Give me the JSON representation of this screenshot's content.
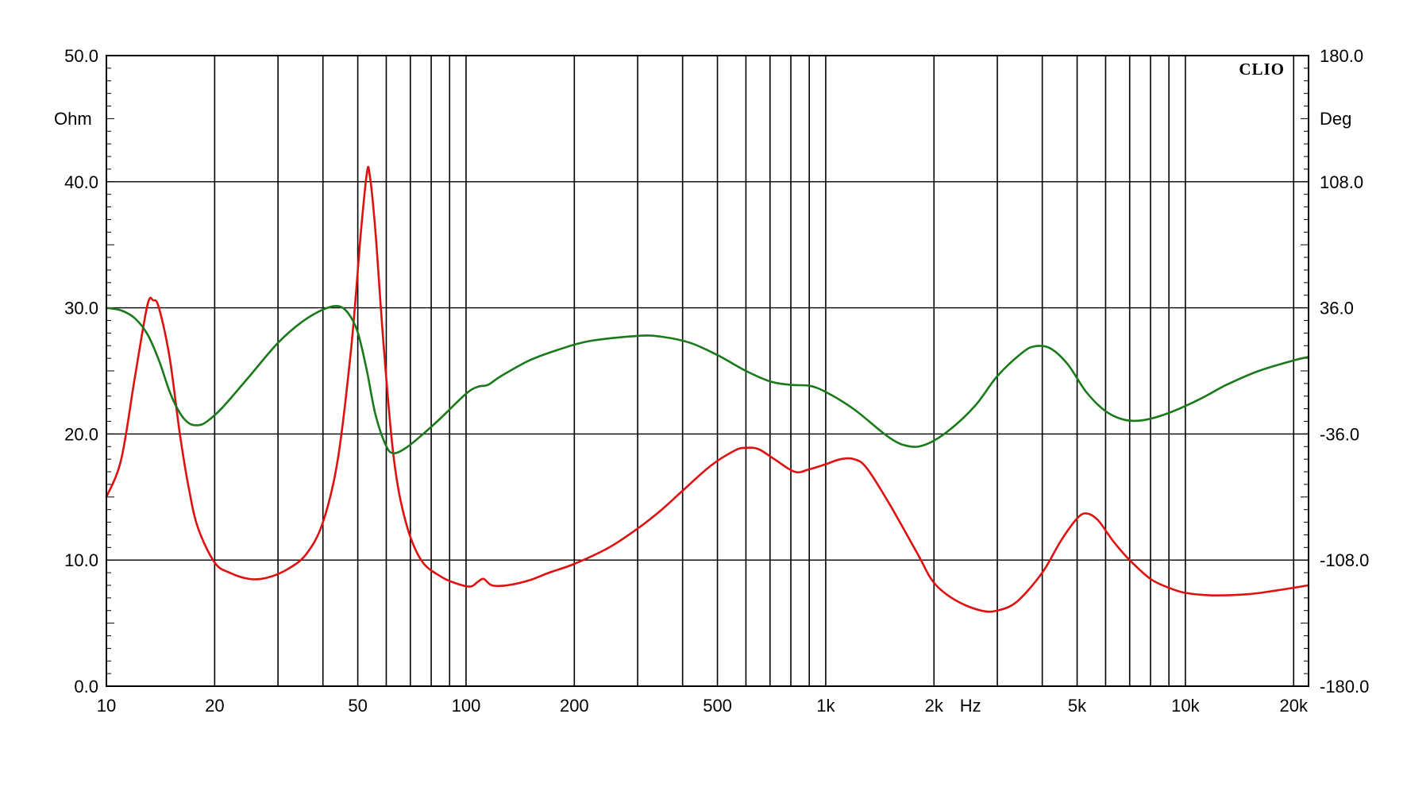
{
  "chart_data": {
    "type": "line",
    "title": "",
    "brand": "CLIO",
    "xlabel": "Hz",
    "x_scale": "log",
    "xlim": [
      10,
      22000
    ],
    "x_ticks": [
      {
        "value": 10,
        "label": "10"
      },
      {
        "value": 20,
        "label": "20"
      },
      {
        "value": 50,
        "label": "50"
      },
      {
        "value": 100,
        "label": "100"
      },
      {
        "value": 200,
        "label": "200"
      },
      {
        "value": 500,
        "label": "500"
      },
      {
        "value": 1000,
        "label": "1k"
      },
      {
        "value": 2000,
        "label": "2k"
      },
      {
        "value": 5000,
        "label": "5k"
      },
      {
        "value": 10000,
        "label": "10k"
      },
      {
        "value": 20000,
        "label": "20k"
      }
    ],
    "y_left": {
      "label": "Ohm",
      "ylim": [
        0,
        50
      ],
      "ticks": [
        "0.0",
        "10.0",
        "20.0",
        "30.0",
        "40.0",
        "50.0"
      ],
      "tick_values": [
        0,
        10,
        20,
        30,
        40,
        50
      ]
    },
    "y_right": {
      "label": "Deg",
      "ylim": [
        -180,
        180
      ],
      "ticks": [
        "-180.0",
        "-108.0",
        "-36.0",
        "36.0",
        "108.0",
        "180.0"
      ],
      "tick_values": [
        -180,
        -108,
        -36,
        36,
        108,
        180
      ]
    },
    "grid": true,
    "series": [
      {
        "id": "impedance",
        "axis": "left",
        "color": "#e01010",
        "points": [
          [
            10,
            15.0
          ],
          [
            11,
            18.0
          ],
          [
            12,
            24.5
          ],
          [
            13,
            30.2
          ],
          [
            13.5,
            30.6
          ],
          [
            14,
            30.0
          ],
          [
            15,
            26.0
          ],
          [
            16,
            20.0
          ],
          [
            17,
            15.5
          ],
          [
            18,
            12.5
          ],
          [
            20,
            9.8
          ],
          [
            22,
            9.0
          ],
          [
            25,
            8.5
          ],
          [
            28,
            8.6
          ],
          [
            32,
            9.3
          ],
          [
            36,
            10.5
          ],
          [
            40,
            13.0
          ],
          [
            44,
            18.0
          ],
          [
            48,
            27.0
          ],
          [
            51,
            36.0
          ],
          [
            53,
            40.7
          ],
          [
            54,
            40.5
          ],
          [
            56,
            36.0
          ],
          [
            59,
            27.0
          ],
          [
            63,
            18.0
          ],
          [
            68,
            13.0
          ],
          [
            75,
            10.0
          ],
          [
            85,
            8.7
          ],
          [
            95,
            8.1
          ],
          [
            103,
            7.9
          ],
          [
            108,
            8.3
          ],
          [
            112,
            8.5
          ],
          [
            118,
            8.0
          ],
          [
            130,
            8.0
          ],
          [
            150,
            8.4
          ],
          [
            170,
            9.0
          ],
          [
            200,
            9.7
          ],
          [
            250,
            11.0
          ],
          [
            300,
            12.5
          ],
          [
            350,
            14.0
          ],
          [
            400,
            15.5
          ],
          [
            480,
            17.5
          ],
          [
            560,
            18.7
          ],
          [
            600,
            18.9
          ],
          [
            650,
            18.8
          ],
          [
            720,
            18.0
          ],
          [
            820,
            17.0
          ],
          [
            900,
            17.2
          ],
          [
            1000,
            17.6
          ],
          [
            1100,
            18.0
          ],
          [
            1200,
            18.0
          ],
          [
            1300,
            17.3
          ],
          [
            1500,
            14.5
          ],
          [
            1800,
            10.5
          ],
          [
            2000,
            8.2
          ],
          [
            2300,
            6.8
          ],
          [
            2700,
            6.0
          ],
          [
            3000,
            6.0
          ],
          [
            3400,
            6.7
          ],
          [
            4000,
            9.0
          ],
          [
            4500,
            11.5
          ],
          [
            5000,
            13.3
          ],
          [
            5300,
            13.7
          ],
          [
            5700,
            13.2
          ],
          [
            6300,
            11.5
          ],
          [
            7000,
            10.0
          ],
          [
            8000,
            8.5
          ],
          [
            9000,
            7.8
          ],
          [
            10000,
            7.4
          ],
          [
            12000,
            7.2
          ],
          [
            15000,
            7.3
          ],
          [
            18000,
            7.6
          ],
          [
            22000,
            8.0
          ]
        ]
      },
      {
        "id": "phase",
        "axis": "right",
        "color": "#1a7a1a",
        "points": [
          [
            10,
            36.0
          ],
          [
            11,
            34.5
          ],
          [
            12,
            30.0
          ],
          [
            13,
            21.0
          ],
          [
            14,
            6.0
          ],
          [
            15,
            -12.0
          ],
          [
            16,
            -24.0
          ],
          [
            17,
            -30.0
          ],
          [
            18,
            -31.0
          ],
          [
            19,
            -29.0
          ],
          [
            21,
            -21.0
          ],
          [
            25,
            -3.0
          ],
          [
            30,
            16.0
          ],
          [
            35,
            28.0
          ],
          [
            40,
            35.0
          ],
          [
            44,
            37.0
          ],
          [
            47,
            33.0
          ],
          [
            50,
            22.0
          ],
          [
            53,
            0.0
          ],
          [
            56,
            -25.0
          ],
          [
            60,
            -43.0
          ],
          [
            63,
            -47.0
          ],
          [
            68,
            -44.0
          ],
          [
            75,
            -37.0
          ],
          [
            85,
            -27.0
          ],
          [
            100,
            -13.0
          ],
          [
            108,
            -9.0
          ],
          [
            115,
            -8.0
          ],
          [
            125,
            -3.0
          ],
          [
            150,
            6.0
          ],
          [
            180,
            12.0
          ],
          [
            220,
            17.0
          ],
          [
            300,
            20.0
          ],
          [
            350,
            19.5
          ],
          [
            420,
            16.0
          ],
          [
            500,
            9.0
          ],
          [
            600,
            0.0
          ],
          [
            700,
            -6.0
          ],
          [
            800,
            -8.0
          ],
          [
            900,
            -8.5
          ],
          [
            1000,
            -12.0
          ],
          [
            1200,
            -22.0
          ],
          [
            1500,
            -38.0
          ],
          [
            1700,
            -43.0
          ],
          [
            1900,
            -42.0
          ],
          [
            2200,
            -34.0
          ],
          [
            2600,
            -20.0
          ],
          [
            3000,
            -3.0
          ],
          [
            3500,
            10.0
          ],
          [
            3800,
            14.0
          ],
          [
            4200,
            13.0
          ],
          [
            4700,
            4.0
          ],
          [
            5300,
            -12.0
          ],
          [
            6000,
            -23.0
          ],
          [
            6800,
            -28.0
          ],
          [
            7700,
            -28.0
          ],
          [
            9000,
            -24.0
          ],
          [
            11000,
            -16.0
          ],
          [
            13000,
            -8.0
          ],
          [
            16000,
            0.0
          ],
          [
            20000,
            6.0
          ],
          [
            22000,
            8.0
          ]
        ]
      }
    ]
  }
}
